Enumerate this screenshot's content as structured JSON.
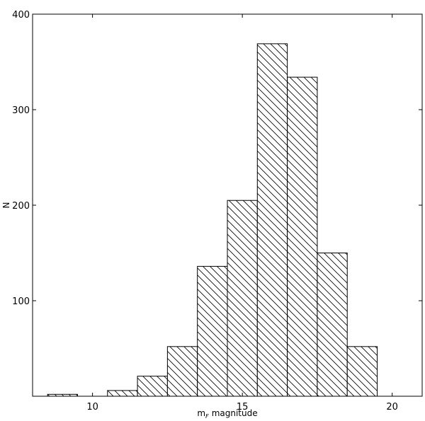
{
  "chart_data": {
    "type": "bar",
    "title": "",
    "xlabel": "magnitude",
    "xlabel_prefix": "m",
    "xlabel_subscript": "F",
    "ylabel": "N",
    "xlim": [
      8.0,
      21.0
    ],
    "ylim": [
      0,
      400
    ],
    "x_ticks": [
      10,
      15,
      20
    ],
    "x_tick_labels": [
      "10",
      "15",
      "20"
    ],
    "y_ticks": [
      100,
      200,
      300,
      400
    ],
    "y_tick_labels": [
      "100",
      "200",
      "300",
      "400"
    ],
    "grid": false,
    "legend": "none",
    "bar_fill": "#ffffff",
    "bar_edge": "#000000",
    "hatch": "backslash",
    "bin_edges": [
      8.5,
      9.5,
      10.5,
      11.5,
      12.5,
      13.5,
      14.5,
      15.5,
      16.5,
      17.5,
      18.5,
      19.5
    ],
    "values": [
      2,
      0,
      6,
      21,
      52,
      136,
      205,
      369,
      334,
      150,
      52
    ]
  }
}
